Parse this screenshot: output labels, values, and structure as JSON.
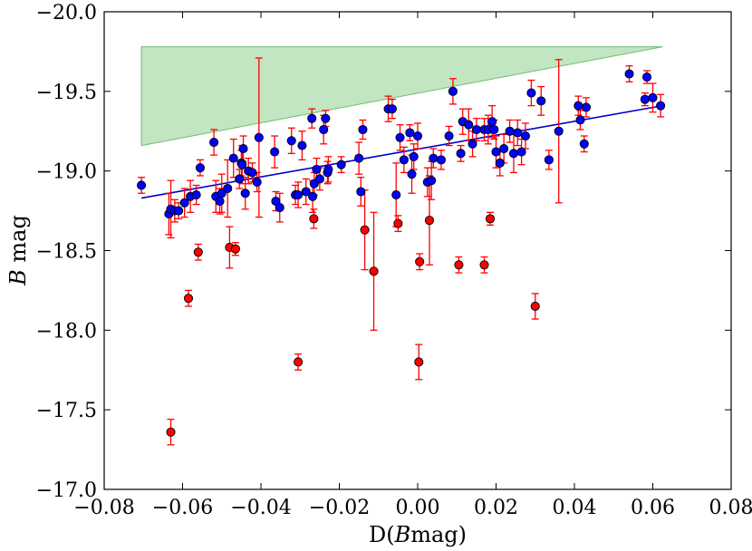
{
  "chart_data": {
    "type": "scatter",
    "title": "",
    "xlabel": "D(Bmag)",
    "xlabel_parts": [
      "D(",
      "B",
      "mag)"
    ],
    "ylabel": "B mag",
    "ylabel_parts": [
      "B",
      " mag"
    ],
    "xlim": [
      -0.08,
      0.08
    ],
    "ylim": [
      -20.0,
      -17.0
    ],
    "y_inverted": true,
    "grid": false,
    "x_ticks": [
      -0.08,
      -0.06,
      -0.04,
      -0.02,
      0.0,
      0.02,
      0.04,
      0.06,
      0.08
    ],
    "x_tick_labels": [
      "−0.08",
      "−0.06",
      "−0.04",
      "−0.02",
      "0.00",
      "0.02",
      "0.04",
      "0.06",
      "0.08"
    ],
    "y_ticks": [
      -20.0,
      -19.5,
      -19.0,
      -18.5,
      -18.0,
      -17.5,
      -17.0
    ],
    "y_tick_labels": [
      "−20.0",
      "−19.5",
      "−19.0",
      "−18.5",
      "−18.0",
      "−17.5",
      "−17.0"
    ],
    "fit_line": {
      "color": "#0000cc",
      "x": [
        -0.0705,
        0.0625
      ],
      "y": [
        -18.83,
        -19.41
      ]
    },
    "shaded_region": {
      "color": "#8fcf8f",
      "vertices": [
        [
          -0.0705,
          -19.78
        ],
        [
          0.0625,
          -19.78
        ],
        [
          -0.0705,
          -19.16
        ]
      ]
    },
    "series": [
      {
        "name": "blue",
        "color": "#0000ff",
        "errorbar_color": "#ff0000",
        "x": [
          -0.0705,
          -0.0635,
          -0.063,
          -0.062,
          -0.061,
          -0.0595,
          -0.058,
          -0.0565,
          -0.0555,
          -0.052,
          -0.0515,
          -0.0505,
          -0.05,
          -0.0485,
          -0.047,
          -0.0455,
          -0.045,
          -0.0448,
          -0.0445,
          -0.044,
          -0.0432,
          -0.0422,
          -0.041,
          -0.0405,
          -0.0365,
          -0.0362,
          -0.0352,
          -0.0322,
          -0.0312,
          -0.0305,
          -0.0295,
          -0.0285,
          -0.027,
          -0.0268,
          -0.0264,
          -0.0258,
          -0.025,
          -0.024,
          -0.0235,
          -0.023,
          -0.0228,
          -0.0195,
          -0.015,
          -0.0145,
          -0.014,
          -0.0075,
          -0.0065,
          -0.0055,
          -0.0045,
          -0.0035,
          -0.002,
          -0.0015,
          -0.001,
          0.0,
          0.0025,
          0.0035,
          0.004,
          0.006,
          0.008,
          0.009,
          0.011,
          0.0115,
          0.013,
          0.014,
          0.015,
          0.017,
          0.018,
          0.019,
          0.0195,
          0.02,
          0.021,
          0.022,
          0.0235,
          0.0245,
          0.0255,
          0.0265,
          0.0275,
          0.029,
          0.0315,
          0.0335,
          0.036,
          0.041,
          0.0415,
          0.0425,
          0.043,
          0.054,
          0.058,
          0.0585,
          0.06,
          0.062
        ],
        "y": [
          -18.91,
          -18.73,
          -18.76,
          -18.75,
          -18.75,
          -18.8,
          -18.84,
          -18.85,
          -19.02,
          -19.18,
          -18.84,
          -18.81,
          -18.86,
          -18.89,
          -19.08,
          -18.95,
          -19.05,
          -19.04,
          -19.14,
          -18.86,
          -19.0,
          -18.99,
          -18.93,
          -19.21,
          -19.12,
          -18.81,
          -18.77,
          -19.19,
          -18.85,
          -18.85,
          -19.16,
          -18.87,
          -19.33,
          -18.84,
          -18.92,
          -19.01,
          -18.95,
          -19.26,
          -19.33,
          -18.99,
          -19.01,
          -19.04,
          -19.08,
          -18.87,
          -19.26,
          -19.39,
          -19.39,
          -18.85,
          -19.21,
          -19.07,
          -19.24,
          -18.98,
          -19.09,
          -19.22,
          -18.93,
          -18.94,
          -19.08,
          -19.07,
          -19.22,
          -19.5,
          -19.11,
          -19.31,
          -19.29,
          -19.17,
          -19.26,
          -19.26,
          -19.26,
          -19.31,
          -19.26,
          -19.12,
          -19.05,
          -19.14,
          -19.25,
          -19.11,
          -19.24,
          -19.12,
          -19.22,
          -19.49,
          -19.44,
          -19.07,
          -19.25,
          -19.41,
          -19.32,
          -19.17,
          -19.4,
          -19.61,
          -19.45,
          -19.59,
          -19.46,
          -19.41
        ],
        "err": [
          0.05,
          0.13,
          0.18,
          0.07,
          0.05,
          0.09,
          0.1,
          0.06,
          0.05,
          0.08,
          0.1,
          0.08,
          0.12,
          0.18,
          0.12,
          0.06,
          0.08,
          0.12,
          0.08,
          0.1,
          0.08,
          0.06,
          0.06,
          0.5,
          0.1,
          0.06,
          0.09,
          0.08,
          0.06,
          0.08,
          0.09,
          0.08,
          0.06,
          0.1,
          0.07,
          0.07,
          0.07,
          0.09,
          0.05,
          0.07,
          0.08,
          0.05,
          0.1,
          0.09,
          0.06,
          0.08,
          0.06,
          0.2,
          0.08,
          0.08,
          0.05,
          0.12,
          0.08,
          0.08,
          0.09,
          0.12,
          0.06,
          0.06,
          0.06,
          0.08,
          0.05,
          0.08,
          0.1,
          0.08,
          0.07,
          0.07,
          0.09,
          0.1,
          0.06,
          0.1,
          0.08,
          0.09,
          0.07,
          0.12,
          0.08,
          0.08,
          0.08,
          0.08,
          0.09,
          0.06,
          0.45,
          0.06,
          0.06,
          0.05,
          0.06,
          0.05,
          0.04,
          0.04,
          0.09,
          0.07
        ]
      },
      {
        "name": "red",
        "color": "#ff0000",
        "errorbar_color": "#ff0000",
        "x": [
          -0.063,
          -0.0585,
          -0.056,
          -0.048,
          -0.0465,
          -0.0305,
          -0.0265,
          -0.0135,
          -0.0112,
          -0.005,
          0.0003,
          0.0005,
          0.003,
          0.0105,
          0.017,
          0.0185,
          0.03
        ],
        "y": [
          -17.36,
          -18.2,
          -18.49,
          -18.52,
          -18.51,
          -17.8,
          -18.7,
          -18.63,
          -18.37,
          -18.67,
          -17.8,
          -18.43,
          -18.69,
          -18.41,
          -18.41,
          -18.7,
          -18.15
        ],
        "err": [
          0.08,
          0.05,
          0.05,
          0.13,
          0.04,
          0.05,
          0.06,
          0.25,
          0.37,
          0.05,
          0.11,
          0.05,
          0.28,
          0.05,
          0.05,
          0.04,
          0.08
        ]
      }
    ]
  }
}
